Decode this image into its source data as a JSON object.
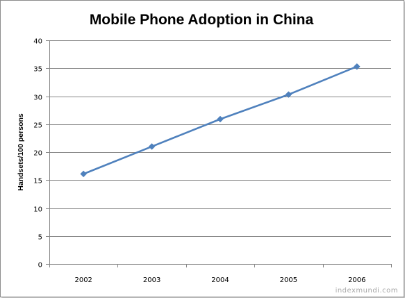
{
  "chart_data": {
    "type": "line",
    "title": "Mobile Phone Adoption in China",
    "xlabel": "",
    "ylabel": "Handsets/100 persons",
    "categories": [
      "2002",
      "2003",
      "2004",
      "2005",
      "2006"
    ],
    "series": [
      {
        "values": [
          16.1,
          21.0,
          25.9,
          30.3,
          35.3
        ]
      }
    ],
    "ylim": [
      0,
      40
    ],
    "yticks": [
      0,
      5,
      10,
      15,
      20,
      25,
      30,
      35,
      40
    ],
    "yticks_labels": [
      "0",
      "5",
      "10",
      "15",
      "20",
      "25",
      "30",
      "35",
      "40"
    ],
    "grid": "horizontal",
    "legend": "none",
    "line_color": "#4f81bd",
    "marker": "diamond"
  },
  "watermark": "indexmundi.com"
}
